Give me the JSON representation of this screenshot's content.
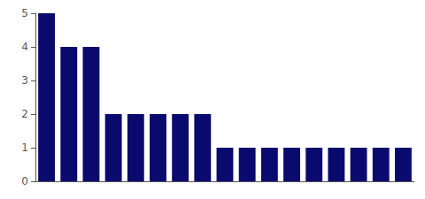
{
  "chart_data": {
    "type": "bar",
    "categories": [
      null,
      null,
      null,
      null,
      null,
      null,
      null,
      null,
      null,
      null,
      null,
      null,
      null,
      null,
      null,
      null,
      null
    ],
    "values": [
      5.0,
      4.0,
      4.0,
      2.0,
      2.0,
      2.0,
      2.0,
      2.0,
      1.0,
      1.0,
      1.0,
      1.0,
      1.0,
      1.0,
      1.0,
      1.0,
      1.0
    ],
    "color": "#0a0a6e",
    "ylim": [
      0,
      5
    ],
    "yticks": [
      0,
      1,
      2,
      3,
      4,
      5
    ],
    "grid": false,
    "tick_labels": "y"
  }
}
